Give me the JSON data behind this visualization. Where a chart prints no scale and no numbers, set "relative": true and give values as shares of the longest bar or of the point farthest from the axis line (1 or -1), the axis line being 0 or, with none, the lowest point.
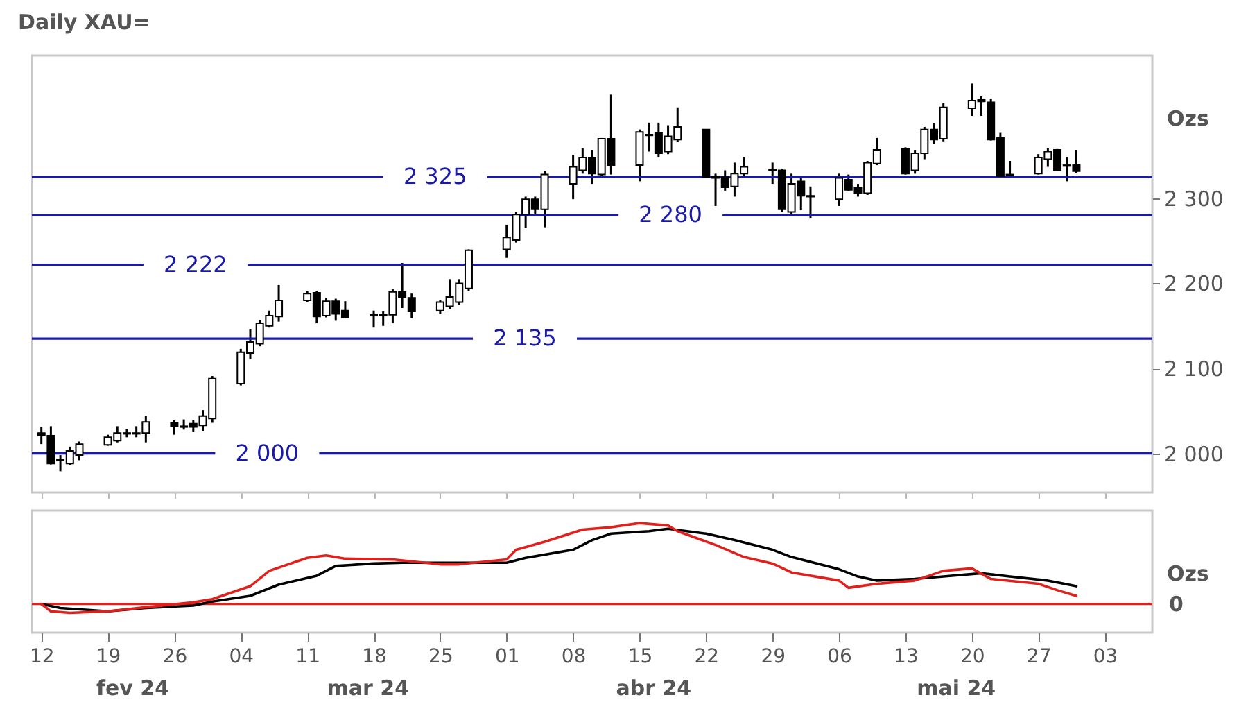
{
  "chart_data": [
    {
      "type": "candlestick",
      "title": "Daily XAU=",
      "ylabel": "Ozs",
      "x": [
        "--02-12",
        "--02-13",
        "--02-14",
        "--02-15",
        "--02-16",
        "--02-19",
        "--02-20",
        "--02-21",
        "--02-22",
        "--02-23",
        "--02-26",
        "--02-27",
        "--02-28",
        "--02-29",
        "--03-01",
        "--03-04",
        "--03-05",
        "--03-06",
        "--03-07",
        "--03-08",
        "--03-11",
        "--03-12",
        "--03-13",
        "--03-14",
        "--03-15",
        "--03-18",
        "--03-19",
        "--03-20",
        "--03-21",
        "--03-22",
        "--03-25",
        "--03-26",
        "--03-27",
        "--03-28",
        "--04-01",
        "--04-02",
        "--04-03",
        "--04-04",
        "--04-05",
        "--04-08",
        "--04-09",
        "--04-10",
        "--04-11",
        "--04-12",
        "--04-15",
        "--04-16",
        "--04-17",
        "--04-18",
        "--04-19",
        "--04-22",
        "--04-23",
        "--04-24",
        "--04-25",
        "--04-26",
        "--04-29",
        "--04-30",
        "--05-01",
        "--05-02",
        "--05-03",
        "--05-06",
        "--05-07",
        "--05-08",
        "--05-09",
        "--05-10",
        "--05-13",
        "--05-14",
        "--05-15",
        "--05-16",
        "--05-17",
        "--05-20",
        "--05-21",
        "--05-22",
        "--05-23",
        "--05-24",
        "--05-27",
        "--05-28",
        "--05-29",
        "--05-30",
        "--05-31"
      ],
      "ohlc": [
        [
          2024,
          2031,
          2011,
          2021
        ],
        [
          2021,
          2032,
          1987,
          1988
        ],
        [
          1993,
          1998,
          1979,
          1992
        ],
        [
          1988,
          2008,
          1986,
          2003
        ],
        [
          1998,
          2014,
          1992,
          2011
        ],
        [
          2010,
          2022,
          2009,
          2019
        ],
        [
          2015,
          2032,
          2013,
          2024
        ],
        [
          2023,
          2029,
          2019,
          2024
        ],
        [
          2023,
          2032,
          2019,
          2024
        ],
        [
          2024,
          2044,
          2013,
          2037
        ],
        [
          2036,
          2039,
          2022,
          2032
        ],
        [
          2032,
          2040,
          2028,
          2031
        ],
        [
          2035,
          2039,
          2025,
          2031
        ],
        [
          2033,
          2051,
          2026,
          2044
        ],
        [
          2041,
          2091,
          2036,
          2088
        ],
        [
          2082,
          2123,
          2080,
          2119
        ],
        [
          2118,
          2146,
          2111,
          2131
        ],
        [
          2129,
          2157,
          2126,
          2153
        ],
        [
          2150,
          2168,
          2148,
          2162
        ],
        [
          2161,
          2198,
          2155,
          2180
        ],
        [
          2180,
          2191,
          2178,
          2188
        ],
        [
          2189,
          2191,
          2153,
          2161
        ],
        [
          2162,
          2183,
          2160,
          2179
        ],
        [
          2179,
          2182,
          2156,
          2164
        ],
        [
          2168,
          2179,
          2159,
          2160
        ],
        [
          2163,
          2168,
          2148,
          2162
        ],
        [
          2162,
          2167,
          2150,
          2163
        ],
        [
          2163,
          2193,
          2153,
          2190
        ],
        [
          2190,
          2224,
          2171,
          2184
        ],
        [
          2183,
          2188,
          2159,
          2167
        ],
        [
          2168,
          2180,
          2164,
          2178
        ],
        [
          2173,
          2205,
          2170,
          2184
        ],
        [
          2178,
          2205,
          2175,
          2200
        ],
        [
          2194,
          2240,
          2191,
          2239
        ],
        [
          2240,
          2269,
          2230,
          2254
        ],
        [
          2251,
          2284,
          2248,
          2281
        ],
        [
          2281,
          2302,
          2265,
          2299
        ],
        [
          2299,
          2302,
          2282,
          2287
        ],
        [
          2287,
          2332,
          2266,
          2328
        ],
        [
          2317,
          2351,
          2299,
          2337
        ],
        [
          2333,
          2359,
          2329,
          2348
        ],
        [
          2348,
          2357,
          2317,
          2329
        ],
        [
          2328,
          2371,
          2326,
          2370
        ],
        [
          2370,
          2422,
          2328,
          2339
        ],
        [
          2339,
          2381,
          2320,
          2378
        ],
        [
          2374,
          2389,
          2355,
          2375
        ],
        [
          2377,
          2389,
          2348,
          2353
        ],
        [
          2355,
          2386,
          2352,
          2373
        ],
        [
          2369,
          2407,
          2366,
          2384
        ],
        [
          2381,
          2381,
          2325,
          2325
        ],
        [
          2326,
          2329,
          2291,
          2324
        ],
        [
          2325,
          2333,
          2309,
          2313
        ],
        [
          2314,
          2342,
          2302,
          2329
        ],
        [
          2329,
          2348,
          2326,
          2337
        ],
        [
          2334,
          2342,
          2317,
          2333
        ],
        [
          2333,
          2335,
          2284,
          2287
        ],
        [
          2284,
          2329,
          2281,
          2317
        ],
        [
          2320,
          2326,
          2286,
          2303
        ],
        [
          2303,
          2314,
          2277,
          2302
        ],
        [
          2299,
          2329,
          2291,
          2324
        ],
        [
          2322,
          2328,
          2309,
          2310
        ],
        [
          2313,
          2317,
          2302,
          2306
        ],
        [
          2306,
          2344,
          2304,
          2342
        ],
        [
          2341,
          2371,
          2339,
          2357
        ],
        [
          2358,
          2360,
          2328,
          2329
        ],
        [
          2333,
          2357,
          2329,
          2353
        ],
        [
          2353,
          2384,
          2346,
          2381
        ],
        [
          2381,
          2388,
          2364,
          2369
        ],
        [
          2370,
          2412,
          2367,
          2407
        ],
        [
          2406,
          2435,
          2397,
          2415
        ],
        [
          2416,
          2420,
          2397,
          2414
        ],
        [
          2413,
          2417,
          2368,
          2369
        ],
        [
          2371,
          2377,
          2325,
          2326
        ],
        [
          2328,
          2344,
          2325,
          2327
        ],
        [
          2329,
          2352,
          2328,
          2348
        ],
        [
          2346,
          2359,
          2337,
          2355
        ],
        [
          2357,
          2358,
          2332,
          2333
        ],
        [
          2339,
          2348,
          2320,
          2338
        ],
        [
          2339,
          2357,
          2330,
          2332
        ]
      ],
      "xlim": [
        "--02-11",
        "--06-08"
      ],
      "xticks": [
        {
          "value": "--02-12",
          "label": null
        },
        {
          "value": "--02-19",
          "label": null
        },
        {
          "value": "--02-26",
          "label": null
        },
        {
          "value": "--03-04",
          "label": null
        },
        {
          "value": "--03-11",
          "label": null
        },
        {
          "value": "--03-18",
          "label": null
        },
        {
          "value": "--03-25",
          "label": null
        },
        {
          "value": "--04-01",
          "label": null
        },
        {
          "value": "--04-08",
          "label": null
        },
        {
          "value": "--04-15",
          "label": null
        },
        {
          "value": "--04-22",
          "label": null
        },
        {
          "value": "--04-29",
          "label": null
        },
        {
          "value": "--05-06",
          "label": null
        },
        {
          "value": "--05-13",
          "label": null
        },
        {
          "value": "--05-20",
          "label": null
        },
        {
          "value": "--05-27",
          "label": null
        },
        {
          "value": "--06-03",
          "label": null
        }
      ],
      "ylim": [
        1954,
        2468
      ],
      "yticks": [
        {
          "value": 2000,
          "label": "2 000"
        },
        {
          "value": 2100,
          "label": "2 100"
        },
        {
          "value": 2200,
          "label": "2 200"
        },
        {
          "value": 2300,
          "label": "2 300"
        }
      ],
      "ref_lines": [
        {
          "axis": "y",
          "value": 2325,
          "label": "2 325",
          "color": "#1a1aa8"
        },
        {
          "axis": "y",
          "value": 2280,
          "label": "2 280",
          "color": "#1a1aa8"
        },
        {
          "axis": "y",
          "value": 2222,
          "label": "2 222",
          "color": "#1a1aa8"
        },
        {
          "axis": "y",
          "value": 2135,
          "label": "2 135",
          "color": "#1a1aa8"
        },
        {
          "axis": "y",
          "value": 2000,
          "label": "2 000",
          "color": "#1a1aa8"
        }
      ],
      "tick_labels": "y"
    },
    {
      "type": "line",
      "relative": true,
      "ylabel": "Ozs",
      "series": [
        {
          "color": "#000000",
          "x": [
            "--02-12",
            "--02-14",
            "--02-19",
            "--02-23",
            "--02-28",
            "--03-01",
            "--03-05",
            "--03-08",
            "--03-12",
            "--03-14",
            "--03-18",
            "--03-21",
            "--03-26",
            "--04-01",
            "--04-03",
            "--04-08",
            "--04-10",
            "--04-12",
            "--04-16",
            "--04-18",
            "--04-22",
            "--04-25",
            "--04-29",
            "--05-01",
            "--05-06",
            "--05-08",
            "--05-10",
            "--05-14",
            "--05-17",
            "--05-21",
            "--05-24",
            "--05-28",
            "--05-31"
          ],
          "values": [
            0,
            -0.05,
            -0.09,
            -0.05,
            -0.02,
            0.03,
            0.1,
            0.24,
            0.35,
            0.47,
            0.5,
            0.51,
            0.51,
            0.51,
            0.57,
            0.67,
            0.79,
            0.87,
            0.9,
            0.93,
            0.87,
            0.79,
            0.67,
            0.58,
            0.43,
            0.34,
            0.29,
            0.31,
            0.34,
            0.38,
            0.34,
            0.29,
            0.22
          ]
        },
        {
          "color": "#e0201c",
          "x": [
            "--02-12",
            "--02-13",
            "--02-15",
            "--02-19",
            "--02-23",
            "--02-28",
            "--03-01",
            "--03-05",
            "--03-07",
            "--03-11",
            "--03-13",
            "--03-15",
            "--03-20",
            "--03-25",
            "--03-27",
            "--04-01",
            "--04-02",
            "--04-05",
            "--04-09",
            "--04-12",
            "--04-15",
            "--04-18",
            "--04-19",
            "--04-23",
            "--04-26",
            "--04-29",
            "--05-01",
            "--05-06",
            "--05-07",
            "--05-10",
            "--05-14",
            "--05-17",
            "--05-20",
            "--05-22",
            "--05-27",
            "--05-29",
            "--05-31"
          ],
          "values": [
            0,
            -0.09,
            -0.11,
            -0.09,
            -0.04,
            0.02,
            0.06,
            0.22,
            0.41,
            0.57,
            0.6,
            0.56,
            0.55,
            0.49,
            0.49,
            0.55,
            0.67,
            0.77,
            0.92,
            0.95,
            1,
            0.97,
            0.9,
            0.73,
            0.58,
            0.5,
            0.39,
            0.29,
            0.2,
            0.25,
            0.29,
            0.41,
            0.44,
            0.31,
            0.25,
            0.17,
            0.1
          ]
        }
      ],
      "ref_lines": [
        {
          "axis": "y",
          "value": 0,
          "label": "0",
          "color": "#e0201c"
        }
      ],
      "xlim": [
        "--02-11",
        "--06-08"
      ],
      "xticks": [
        {
          "value": "--02-12",
          "label": "12"
        },
        {
          "value": "--02-19",
          "label": "19"
        },
        {
          "value": "--02-26",
          "label": "26"
        },
        {
          "value": "--03-04",
          "label": "04"
        },
        {
          "value": "--03-11",
          "label": "11"
        },
        {
          "value": "--03-18",
          "label": "18"
        },
        {
          "value": "--03-25",
          "label": "25"
        },
        {
          "value": "--04-01",
          "label": "01"
        },
        {
          "value": "--04-08",
          "label": "08"
        },
        {
          "value": "--04-15",
          "label": "15"
        },
        {
          "value": "--04-22",
          "label": "22"
        },
        {
          "value": "--04-29",
          "label": "29"
        },
        {
          "value": "--05-06",
          "label": "06"
        },
        {
          "value": "--05-13",
          "label": "13"
        },
        {
          "value": "--05-20",
          "label": "20"
        },
        {
          "value": "--05-27",
          "label": "27"
        },
        {
          "value": "--06-03",
          "label": "03"
        }
      ],
      "annotations": [
        "fev 24",
        "mar 24",
        "abr 24",
        "mai 24"
      ],
      "tick_labels": "x"
    }
  ]
}
